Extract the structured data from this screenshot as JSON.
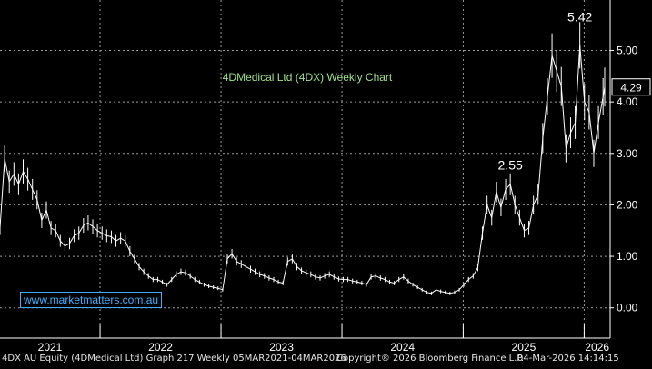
{
  "chart_data": {
    "type": "line",
    "title": "4DMedical Ltd (4DX) Weekly Chart",
    "y_ticks": [
      "0.00",
      "1.00",
      "2.00",
      "3.00",
      "4.00",
      "5.00"
    ],
    "ylim": [
      -0.27,
      5.98
    ],
    "x_year_labels": [
      "2021",
      "2022",
      "2023",
      "2024",
      "2025",
      "2026"
    ],
    "xlim": [
      "2021-03-05",
      "2026-03-04"
    ],
    "grid": true,
    "annotations": [
      {
        "label": "5.42",
        "x": "2025-12-19",
        "y": 5.42
      },
      {
        "label": "2.55",
        "x": "2025-05-23",
        "y": 2.55
      }
    ],
    "last_price_label": "4.29",
    "last_price": 4.29,
    "series": [
      {
        "points": [
          [
            "2021-03-05",
            1.55
          ],
          [
            "2021-03-19",
            2.9
          ],
          [
            "2021-04-02",
            2.45
          ],
          [
            "2021-04-16",
            2.6
          ],
          [
            "2021-04-30",
            2.4
          ],
          [
            "2021-05-14",
            2.65
          ],
          [
            "2021-05-28",
            2.5
          ],
          [
            "2021-06-11",
            2.3
          ],
          [
            "2021-06-25",
            2.1
          ],
          [
            "2021-07-09",
            1.7
          ],
          [
            "2021-07-23",
            1.9
          ],
          [
            "2021-08-06",
            1.55
          ],
          [
            "2021-08-20",
            1.5
          ],
          [
            "2021-09-03",
            1.3
          ],
          [
            "2021-09-17",
            1.2
          ],
          [
            "2021-10-01",
            1.25
          ],
          [
            "2021-10-15",
            1.4
          ],
          [
            "2021-10-29",
            1.45
          ],
          [
            "2021-11-12",
            1.6
          ],
          [
            "2021-11-26",
            1.65
          ],
          [
            "2021-12-10",
            1.58
          ],
          [
            "2021-12-24",
            1.5
          ],
          [
            "2022-01-07",
            1.45
          ],
          [
            "2022-01-21",
            1.4
          ],
          [
            "2022-02-04",
            1.38
          ],
          [
            "2022-02-18",
            1.3
          ],
          [
            "2022-03-04",
            1.35
          ],
          [
            "2022-03-18",
            1.3
          ],
          [
            "2022-04-01",
            1.1
          ],
          [
            "2022-04-15",
            0.95
          ],
          [
            "2022-04-29",
            0.8
          ],
          [
            "2022-05-13",
            0.7
          ],
          [
            "2022-05-27",
            0.62
          ],
          [
            "2022-06-10",
            0.55
          ],
          [
            "2022-06-24",
            0.55
          ],
          [
            "2022-07-08",
            0.5
          ],
          [
            "2022-07-22",
            0.45
          ],
          [
            "2022-08-05",
            0.55
          ],
          [
            "2022-08-19",
            0.65
          ],
          [
            "2022-09-02",
            0.7
          ],
          [
            "2022-09-16",
            0.68
          ],
          [
            "2022-09-30",
            0.62
          ],
          [
            "2022-10-14",
            0.55
          ],
          [
            "2022-10-28",
            0.5
          ],
          [
            "2022-11-11",
            0.45
          ],
          [
            "2022-11-25",
            0.42
          ],
          [
            "2022-12-09",
            0.4
          ],
          [
            "2022-12-23",
            0.38
          ],
          [
            "2023-01-06",
            0.35
          ],
          [
            "2023-01-20",
            0.95
          ],
          [
            "2023-02-03",
            1.05
          ],
          [
            "2023-02-17",
            0.9
          ],
          [
            "2023-03-03",
            0.85
          ],
          [
            "2023-03-17",
            0.8
          ],
          [
            "2023-03-31",
            0.75
          ],
          [
            "2023-04-14",
            0.7
          ],
          [
            "2023-04-28",
            0.65
          ],
          [
            "2023-05-12",
            0.62
          ],
          [
            "2023-05-26",
            0.58
          ],
          [
            "2023-06-09",
            0.55
          ],
          [
            "2023-06-23",
            0.5
          ],
          [
            "2023-07-07",
            0.48
          ],
          [
            "2023-07-21",
            0.9
          ],
          [
            "2023-08-04",
            0.95
          ],
          [
            "2023-08-18",
            0.8
          ],
          [
            "2023-09-01",
            0.72
          ],
          [
            "2023-09-15",
            0.68
          ],
          [
            "2023-09-29",
            0.65
          ],
          [
            "2023-10-13",
            0.6
          ],
          [
            "2023-10-27",
            0.58
          ],
          [
            "2023-11-10",
            0.62
          ],
          [
            "2023-11-24",
            0.65
          ],
          [
            "2023-12-08",
            0.6
          ],
          [
            "2023-12-22",
            0.56
          ],
          [
            "2024-01-05",
            0.55
          ],
          [
            "2024-01-19",
            0.55
          ],
          [
            "2024-02-02",
            0.52
          ],
          [
            "2024-02-16",
            0.5
          ],
          [
            "2024-03-01",
            0.48
          ],
          [
            "2024-03-15",
            0.45
          ],
          [
            "2024-03-29",
            0.6
          ],
          [
            "2024-04-12",
            0.62
          ],
          [
            "2024-04-26",
            0.58
          ],
          [
            "2024-05-10",
            0.55
          ],
          [
            "2024-05-24",
            0.5
          ],
          [
            "2024-06-07",
            0.48
          ],
          [
            "2024-06-21",
            0.55
          ],
          [
            "2024-07-05",
            0.6
          ],
          [
            "2024-07-19",
            0.52
          ],
          [
            "2024-08-02",
            0.45
          ],
          [
            "2024-08-16",
            0.4
          ],
          [
            "2024-08-30",
            0.35
          ],
          [
            "2024-09-13",
            0.3
          ],
          [
            "2024-09-27",
            0.28
          ],
          [
            "2024-10-11",
            0.35
          ],
          [
            "2024-10-25",
            0.32
          ],
          [
            "2024-11-08",
            0.3
          ],
          [
            "2024-11-22",
            0.28
          ],
          [
            "2024-12-06",
            0.3
          ],
          [
            "2024-12-20",
            0.35
          ],
          [
            "2025-01-03",
            0.45
          ],
          [
            "2025-01-17",
            0.55
          ],
          [
            "2025-01-31",
            0.62
          ],
          [
            "2025-02-14",
            0.78
          ],
          [
            "2025-02-28",
            1.45
          ],
          [
            "2025-03-14",
            2.0
          ],
          [
            "2025-03-28",
            1.75
          ],
          [
            "2025-04-11",
            2.25
          ],
          [
            "2025-04-25",
            1.95
          ],
          [
            "2025-05-09",
            2.3
          ],
          [
            "2025-05-23",
            2.4
          ],
          [
            "2025-06-06",
            2.0
          ],
          [
            "2025-06-20",
            1.75
          ],
          [
            "2025-07-04",
            1.5
          ],
          [
            "2025-07-18",
            1.55
          ],
          [
            "2025-08-01",
            2.0
          ],
          [
            "2025-08-15",
            2.2
          ],
          [
            "2025-08-29",
            3.3
          ],
          [
            "2025-09-12",
            4.1
          ],
          [
            "2025-09-26",
            4.9
          ],
          [
            "2025-10-10",
            4.6
          ],
          [
            "2025-10-24",
            4.3
          ],
          [
            "2025-11-07",
            3.1
          ],
          [
            "2025-11-21",
            3.4
          ],
          [
            "2025-12-05",
            3.6
          ],
          [
            "2025-12-19",
            5.1
          ],
          [
            "2026-01-02",
            4.0
          ],
          [
            "2026-01-16",
            3.8
          ],
          [
            "2026-01-30",
            3.0
          ],
          [
            "2026-02-13",
            3.6
          ],
          [
            "2026-02-27",
            4.1
          ],
          [
            "2026-03-04",
            4.29
          ]
        ]
      }
    ]
  },
  "watermark": "www.marketmatters.com.au",
  "footer": {
    "left": "4DX AU Equity (4DMedical Ltd) Graph 217 Weekly 05MAR2021-04MAR2026",
    "mid": "Copyright® 2026 Bloomberg Finance L.P.",
    "right": "04-Mar-2026 14:14:15"
  },
  "colors": {
    "background": "#000000",
    "price": "#ffffff",
    "grid": "#9a9a9a",
    "title": "#9ee08a",
    "watermark": "#3fb0ff",
    "axis_text": "#ffffff"
  }
}
